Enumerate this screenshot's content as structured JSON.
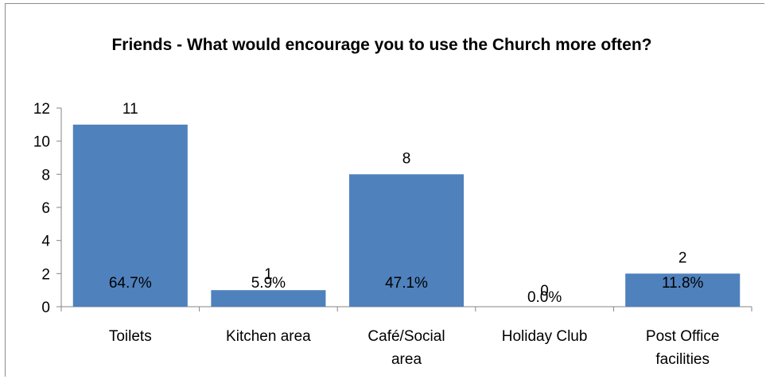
{
  "chart_data": {
    "type": "bar",
    "title": "Friends - What would encourage you to use the Church more often?",
    "categories": [
      "Toilets",
      "Kitchen area",
      "Café/Social area",
      "Holiday Club",
      "Post Office facilities"
    ],
    "category_lines": [
      [
        "Toilets"
      ],
      [
        "Kitchen area"
      ],
      [
        "Café/Social",
        "area"
      ],
      [
        "Holiday Club"
      ],
      [
        "Post Office",
        "facilities"
      ]
    ],
    "values": [
      11,
      1,
      8,
      0,
      2
    ],
    "value_labels": [
      "11",
      "1",
      "8",
      "0",
      "2"
    ],
    "percent_labels": [
      "64.7%",
      "5.9%",
      "47.1%",
      "0.0%",
      "11.8%"
    ],
    "ylim": [
      0,
      12
    ],
    "yticks": [
      "0",
      "2",
      "4",
      "6",
      "8",
      "10",
      "12"
    ],
    "xlabel": "",
    "ylabel": "",
    "grid": false,
    "bar_color": "#4f81bd"
  }
}
